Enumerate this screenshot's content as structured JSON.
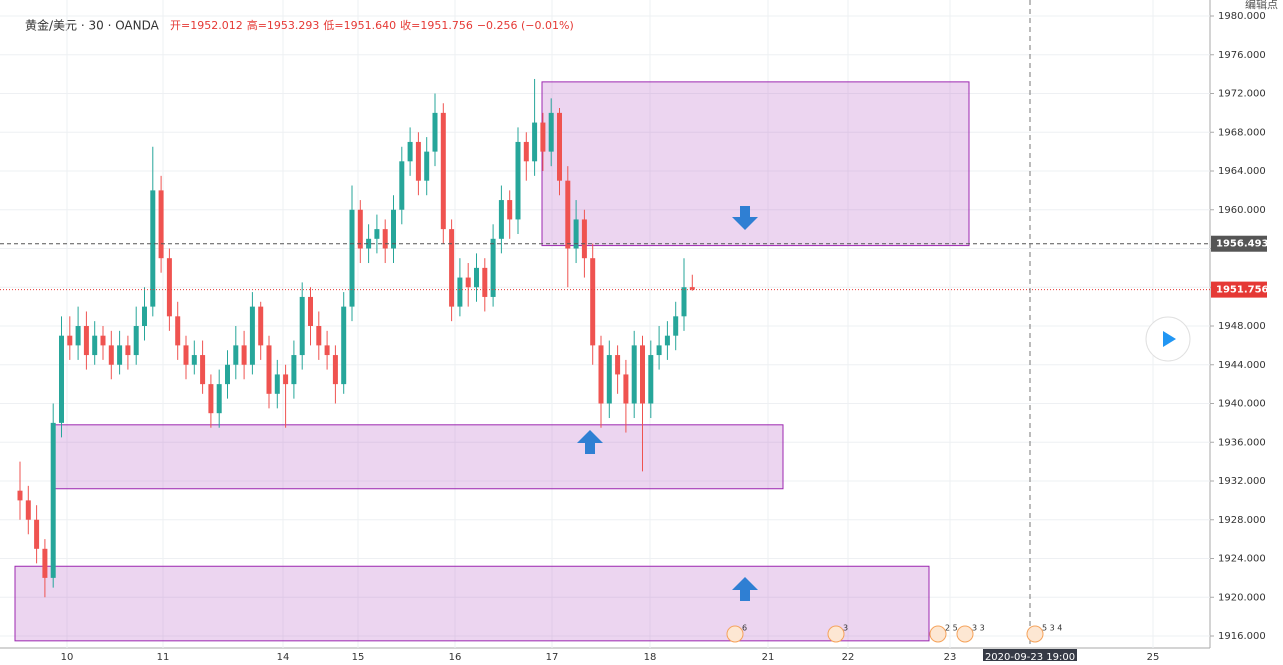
{
  "chart_data": {
    "type": "candlestick",
    "symbol": "黄金/美元 · 30 · OANDA",
    "ohlc_text": [
      "开=1952.012",
      "高=1953.293",
      "低=1951.640",
      "收=1951.756",
      "−0.256 (−0.01%)"
    ],
    "corner_text": "编辑点",
    "up_color": "#26a69a",
    "down_color": "#ef5350",
    "open": [
      1931,
      1930,
      1928,
      1925,
      1922,
      1938,
      1947,
      1946,
      1948,
      1945,
      1947,
      1946,
      1944,
      1946,
      1945,
      1948,
      1950,
      1962,
      1955,
      1949,
      1946,
      1944,
      1945,
      1942,
      1939,
      1942,
      1944,
      1946,
      1944,
      1950,
      1946,
      1941,
      1943,
      1942,
      1945,
      1951,
      1948,
      1946,
      1945,
      1942,
      1950,
      1960,
      1956,
      1957,
      1958,
      1956,
      1960,
      1965,
      1967,
      1963,
      1966,
      1970,
      1958,
      1950,
      1953,
      1952,
      1954,
      1951,
      1957,
      1961,
      1959,
      1967,
      1965,
      1969,
      1966,
      1970,
      1963,
      1956,
      1959,
      1955,
      1946,
      1940,
      1945,
      1943,
      1940,
      1946,
      1940,
      1945,
      1946,
      1947,
      1949,
      1952.012
    ],
    "high": [
      1934,
      1931.5,
      1929.5,
      1926,
      1940,
      1949,
      1949,
      1950,
      1949.5,
      1948.5,
      1948,
      1947.5,
      1947.5,
      1947,
      1950,
      1952,
      1966.5,
      1963.5,
      1956,
      1950.5,
      1947,
      1946.5,
      1946.5,
      1943,
      1943.5,
      1945.5,
      1948,
      1947.5,
      1951.5,
      1950.5,
      1947,
      1944.5,
      1944,
      1946.5,
      1952.5,
      1952,
      1949.5,
      1947.5,
      1946,
      1951.5,
      1962.5,
      1961,
      1958.5,
      1959.5,
      1959,
      1961.5,
      1966.5,
      1968.5,
      1968,
      1967.5,
      1972,
      1971,
      1959,
      1955,
      1954.5,
      1955.5,
      1955,
      1958.5,
      1962.5,
      1962,
      1968.5,
      1968,
      1973.5,
      1970,
      1971.5,
      1970.5,
      1964.5,
      1961,
      1960,
      1956.5,
      1947,
      1946.5,
      1946,
      1944.5,
      1947.5,
      1947,
      1946.5,
      1948,
      1948.5,
      1950.5,
      1955,
      1953.293
    ],
    "low": [
      1928,
      1926.5,
      1923.5,
      1920,
      1921,
      1936.5,
      1944.5,
      1944.5,
      1943.5,
      1944,
      1944.5,
      1942.5,
      1943,
      1943.5,
      1944,
      1946.5,
      1949,
      1953.5,
      1947.5,
      1944.5,
      1942.5,
      1943,
      1941,
      1937.5,
      1937.5,
      1940.5,
      1942.5,
      1942.5,
      1943,
      1944.5,
      1939.5,
      1939.5,
      1937.5,
      1940.5,
      1943.5,
      1946,
      1944.5,
      1943.5,
      1940,
      1941,
      1948.5,
      1954.5,
      1954.5,
      1955.5,
      1954.5,
      1954.5,
      1958.5,
      1963.5,
      1961.5,
      1961.5,
      1964.5,
      1956.5,
      1948.5,
      1949,
      1950,
      1950.5,
      1949.5,
      1950,
      1955.5,
      1957,
      1957.5,
      1963,
      1963.5,
      1964,
      1964.5,
      1961.5,
      1952,
      1954.5,
      1953,
      1944,
      1937.5,
      1938.5,
      1941,
      1937,
      1938.5,
      1933,
      1938.5,
      1943.5,
      1944.5,
      1945.5,
      1947.5,
      1951.64
    ],
    "close": [
      1930,
      1928,
      1925,
      1922,
      1938,
      1947,
      1946,
      1948,
      1945,
      1947,
      1946,
      1944,
      1946,
      1945,
      1948,
      1950,
      1962,
      1955,
      1949,
      1946,
      1944,
      1945,
      1942,
      1939,
      1942,
      1944,
      1946,
      1944,
      1950,
      1946,
      1941,
      1943,
      1942,
      1945,
      1951,
      1948,
      1946,
      1945,
      1942,
      1950,
      1960,
      1956,
      1957,
      1958,
      1956,
      1960,
      1965,
      1967,
      1963,
      1966,
      1970,
      1958,
      1950,
      1953,
      1952,
      1954,
      1951,
      1957,
      1961,
      1959,
      1967,
      1965,
      1969,
      1966,
      1970,
      1963,
      1956,
      1959,
      1955,
      1946,
      1940,
      1945,
      1943,
      1940,
      1946,
      1940,
      1945,
      1946,
      1947,
      1949,
      1952,
      1951.756
    ],
    "ylim": [
      1916,
      1980
    ],
    "yticks": [
      {
        "value": 1916,
        "label": "1916.000"
      },
      {
        "value": 1920,
        "label": "1920.000"
      },
      {
        "value": 1924,
        "label": "1924.000"
      },
      {
        "value": 1928,
        "label": "1928.000"
      },
      {
        "value": 1932,
        "label": "1932.000"
      },
      {
        "value": 1936,
        "label": "1936.000"
      },
      {
        "value": 1940,
        "label": "1940.000"
      },
      {
        "value": 1944,
        "label": "1944.000"
      },
      {
        "value": 1948,
        "label": "1948.000"
      },
      {
        "value": 1952,
        "label": "1952.000"
      },
      {
        "value": 1956,
        "label": "1956.000"
      },
      {
        "value": 1960,
        "label": "1960.000"
      },
      {
        "value": 1964,
        "label": "1964.000"
      },
      {
        "value": 1968,
        "label": "1968.000"
      },
      {
        "value": 1972,
        "label": "1972.000"
      },
      {
        "value": 1976,
        "label": "1976.000"
      },
      {
        "value": 1980,
        "label": "1980.000"
      }
    ],
    "x_labels": [
      "10",
      "11",
      "14",
      "15",
      "16",
      "17",
      "18",
      "21",
      "22",
      "23",
      "2020-09-23  19:00",
      "25"
    ],
    "grid": true,
    "zones": [
      {
        "top": 1973.2,
        "bottom": 1956.3
      },
      {
        "top": 1937.8,
        "bottom": 1931.2
      },
      {
        "top": 1923.2,
        "bottom": 1915.5
      }
    ],
    "price_lines": [
      {
        "value": 1956.493,
        "color": "#555555"
      },
      {
        "value": 1951.756,
        "color": "#e53935"
      }
    ],
    "event_markers": [
      "6",
      "3",
      "2 5",
      "3 3",
      "5 3 4"
    ]
  }
}
